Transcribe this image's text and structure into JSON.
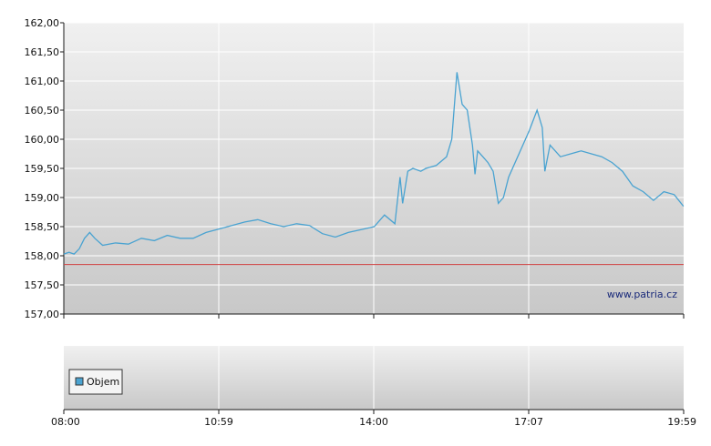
{
  "chart_data": [
    {
      "type": "line",
      "watermark": "www.patria.cz",
      "ylim": [
        157.0,
        162.0
      ],
      "y_ticks": [
        "157,00",
        "157,50",
        "158,00",
        "158,50",
        "159,00",
        "159,50",
        "160,00",
        "160,50",
        "161,00",
        "161,50",
        "162,00"
      ],
      "x_ticks": [
        "08:00",
        "10:59",
        "14:00",
        "17:07",
        "19:59"
      ],
      "x_range_hours": [
        8.0,
        19.983
      ],
      "reference_line": {
        "value": 157.85,
        "color": "#d04040"
      },
      "series": [
        {
          "color": "#4aa3d1",
          "points": [
            [
              8.0,
              158.03
            ],
            [
              8.1,
              158.06
            ],
            [
              8.2,
              158.03
            ],
            [
              8.3,
              158.12
            ],
            [
              8.4,
              158.3
            ],
            [
              8.5,
              158.4
            ],
            [
              8.6,
              158.3
            ],
            [
              8.75,
              158.18
            ],
            [
              9.0,
              158.22
            ],
            [
              9.25,
              158.2
            ],
            [
              9.5,
              158.3
            ],
            [
              9.75,
              158.26
            ],
            [
              10.0,
              158.35
            ],
            [
              10.25,
              158.3
            ],
            [
              10.5,
              158.3
            ],
            [
              10.75,
              158.4
            ],
            [
              11.0,
              158.46
            ],
            [
              11.25,
              158.52
            ],
            [
              11.5,
              158.58
            ],
            [
              11.75,
              158.62
            ],
            [
              12.0,
              158.55
            ],
            [
              12.25,
              158.5
            ],
            [
              12.5,
              158.55
            ],
            [
              12.75,
              158.52
            ],
            [
              13.0,
              158.38
            ],
            [
              13.25,
              158.32
            ],
            [
              13.5,
              158.4
            ],
            [
              13.75,
              158.45
            ],
            [
              14.0,
              158.5
            ],
            [
              14.2,
              158.7
            ],
            [
              14.4,
              158.55
            ],
            [
              14.5,
              159.35
            ],
            [
              14.55,
              158.9
            ],
            [
              14.65,
              159.45
            ],
            [
              14.75,
              159.5
            ],
            [
              14.9,
              159.45
            ],
            [
              15.0,
              159.5
            ],
            [
              15.2,
              159.55
            ],
            [
              15.4,
              159.7
            ],
            [
              15.5,
              160.0
            ],
            [
              15.6,
              161.15
            ],
            [
              15.7,
              160.6
            ],
            [
              15.8,
              160.5
            ],
            [
              15.9,
              159.9
            ],
            [
              15.95,
              159.4
            ],
            [
              16.0,
              159.8
            ],
            [
              16.1,
              159.7
            ],
            [
              16.2,
              159.6
            ],
            [
              16.3,
              159.45
            ],
            [
              16.4,
              158.9
            ],
            [
              16.5,
              159.0
            ],
            [
              16.6,
              159.35
            ],
            [
              17.0,
              160.15
            ],
            [
              17.15,
              160.5
            ],
            [
              17.25,
              160.2
            ],
            [
              17.3,
              159.45
            ],
            [
              17.4,
              159.9
            ],
            [
              17.6,
              159.7
            ],
            [
              17.8,
              159.75
            ],
            [
              18.0,
              159.8
            ],
            [
              18.2,
              159.75
            ],
            [
              18.4,
              159.7
            ],
            [
              18.6,
              159.6
            ],
            [
              18.8,
              159.45
            ],
            [
              19.0,
              159.2
            ],
            [
              19.2,
              159.1
            ],
            [
              19.4,
              158.95
            ],
            [
              19.6,
              159.1
            ],
            [
              19.8,
              159.05
            ],
            [
              19.98,
              158.85
            ]
          ]
        }
      ]
    },
    {
      "type": "bar",
      "legend": [
        {
          "name": "Objem",
          "color": "#4aa3d1"
        }
      ],
      "values": []
    }
  ]
}
